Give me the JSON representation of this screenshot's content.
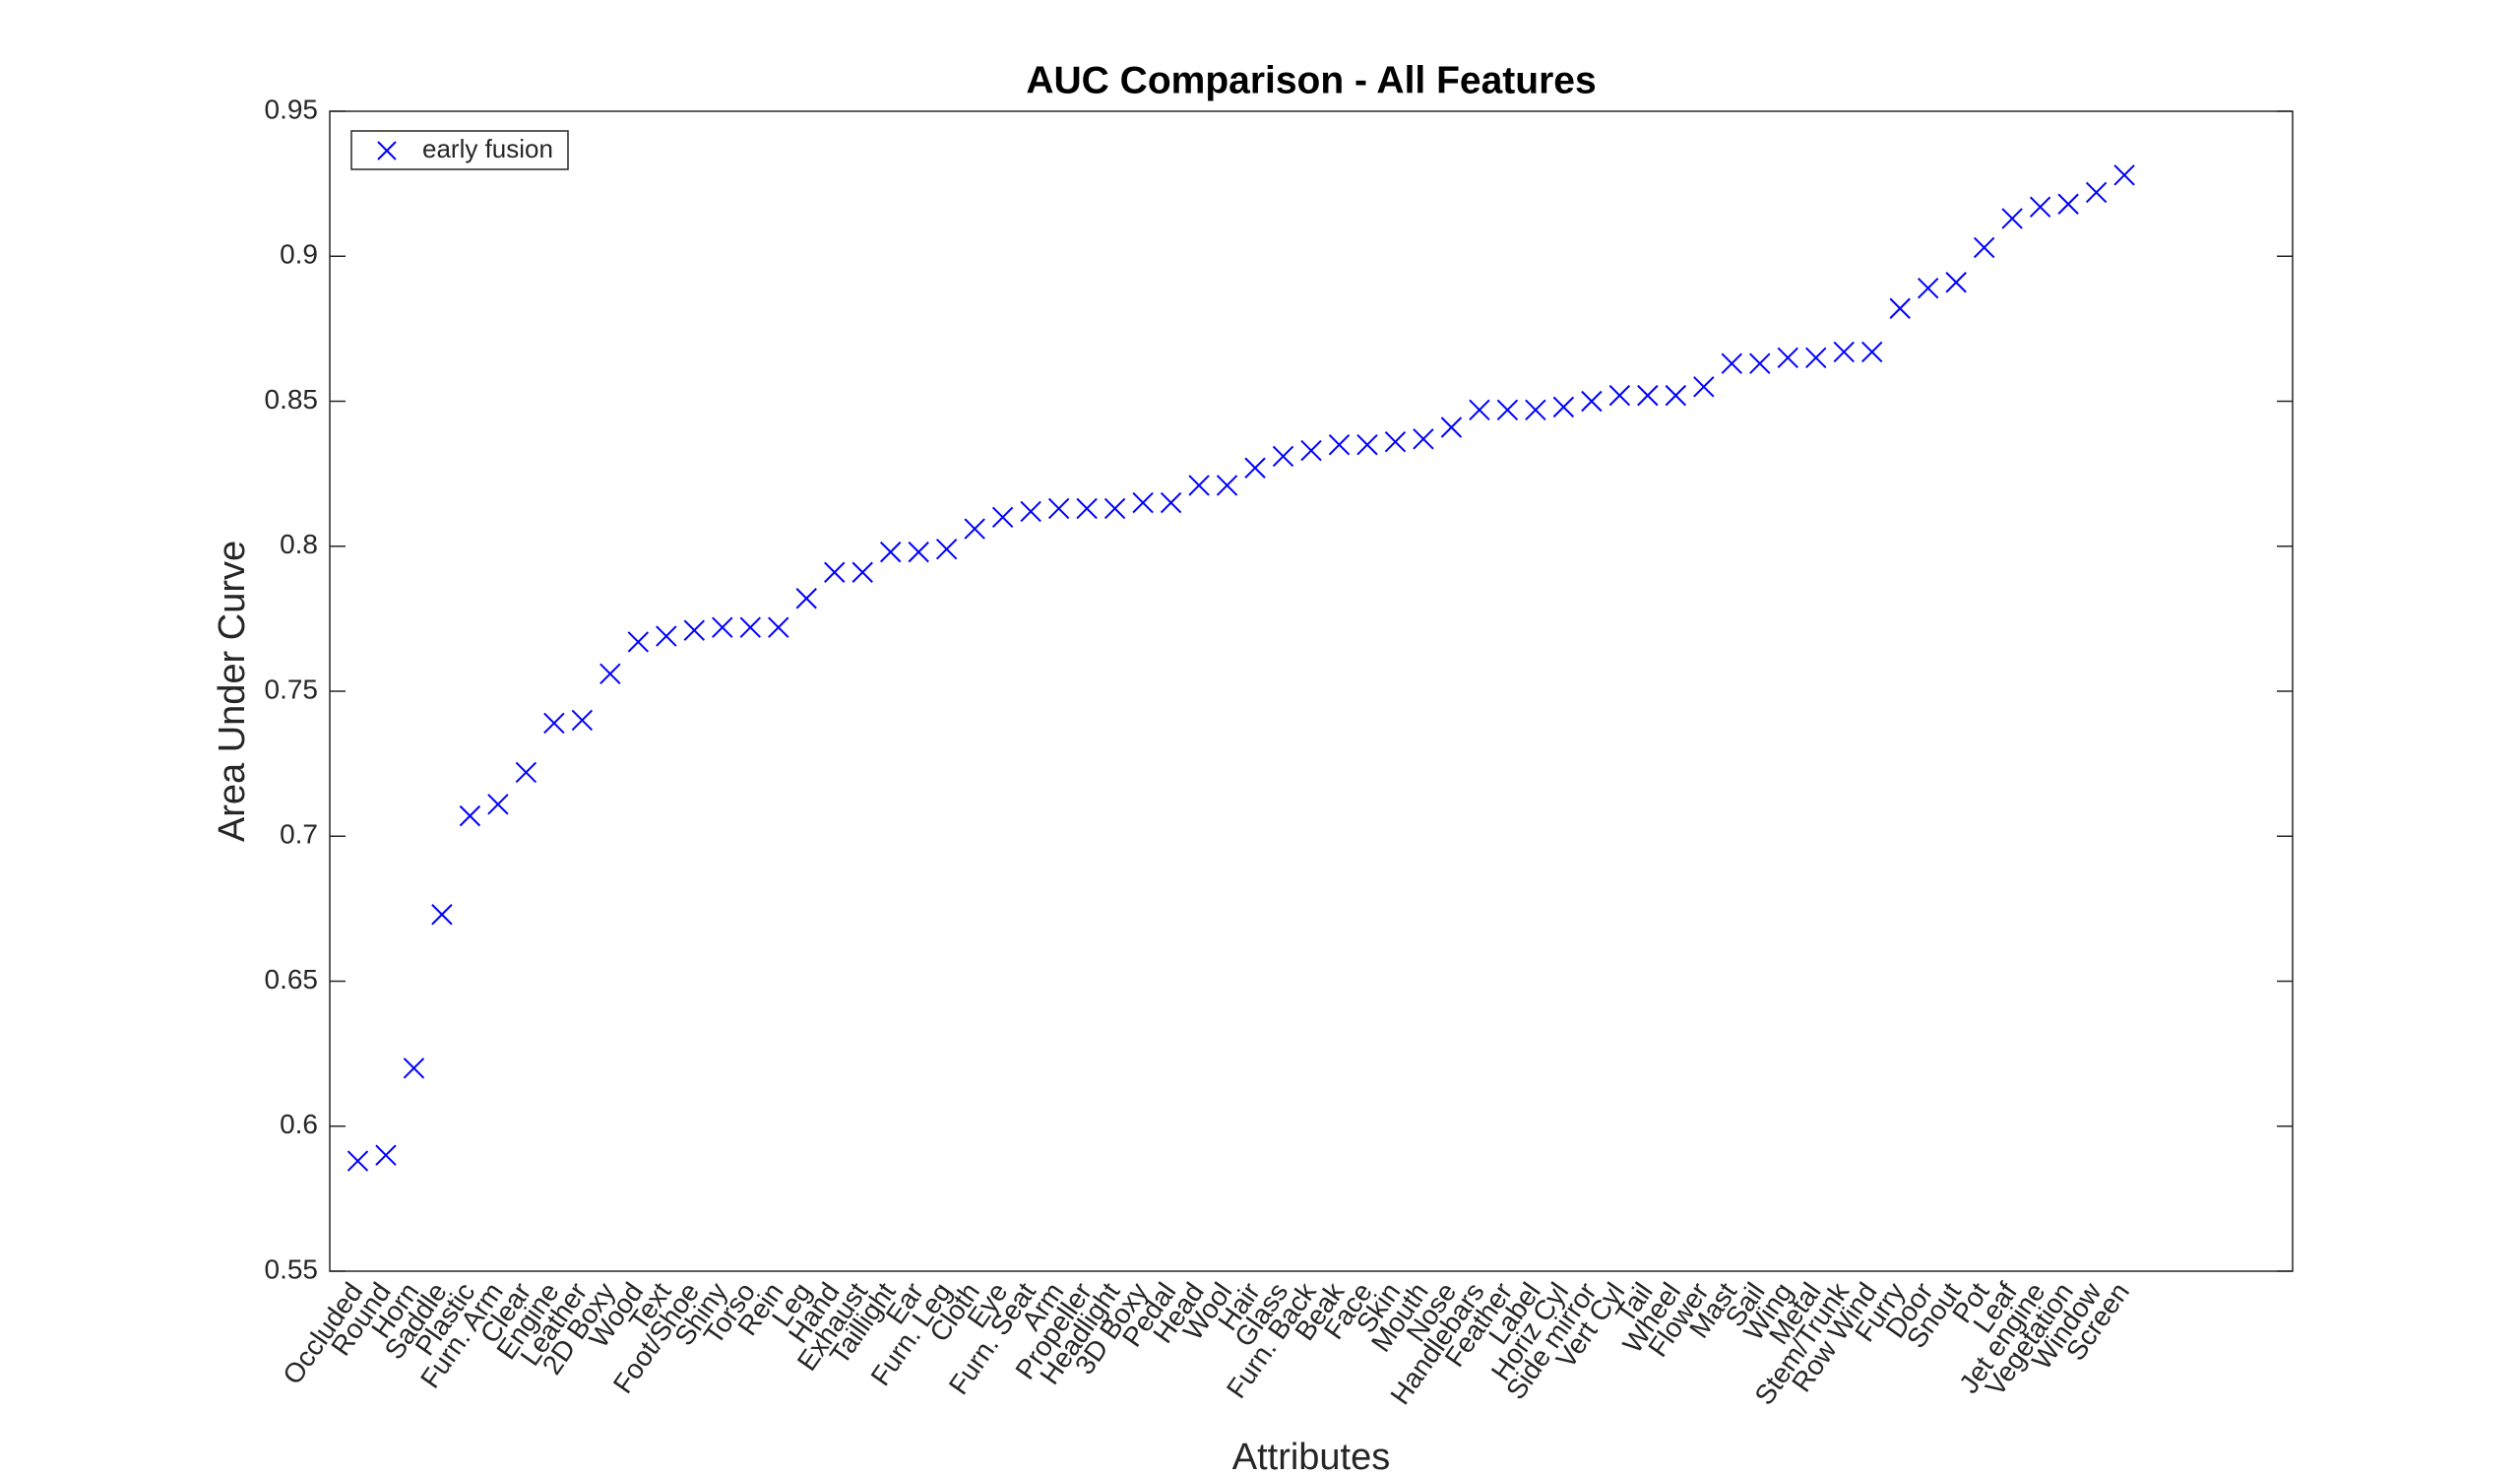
{
  "chart_data": {
    "type": "scatter",
    "title": "AUC Comparison - All Features",
    "xlabel": "Attributes",
    "ylabel": "Area Under Curve",
    "categories": [
      "Occluded",
      "Round",
      "Horn",
      "Saddle",
      "Plastic",
      "Furn. Arm",
      "Clear",
      "Engine",
      "Leather",
      "2D Boxy",
      "Wood",
      "Text",
      "Foot/Shoe",
      "Shiny",
      "Torso",
      "Rein",
      "Leg",
      "Hand",
      "Exhaust",
      "Taillight",
      "Ear",
      "Furn. Leg",
      "Cloth",
      "Eye",
      "Furn. Seat",
      "Arm",
      "Propeller",
      "Headlight",
      "3D Boxy",
      "Pedal",
      "Head",
      "Wool",
      "Hair",
      "Glass",
      "Furn. Back",
      "Beak",
      "Face",
      "Skin",
      "Mouth",
      "Nose",
      "Handlebars",
      "Feather",
      "Label",
      "Horiz Cyl",
      "Side mirror",
      "Vert Cyl",
      "Tail",
      "Wheel",
      "Flower",
      "Mast",
      "Sail",
      "Wing",
      "Metal",
      "Stem/Trunk",
      "Row Wind",
      "Furry",
      "Door",
      "Snout",
      "Pot",
      "Leaf",
      "Jet engine",
      "Vegetation",
      "Window",
      "Screen"
    ],
    "series": [
      {
        "name": "early fusion",
        "color": "#0000ff",
        "values": [
          0.588,
          0.59,
          0.62,
          0.673,
          0.707,
          0.711,
          0.722,
          0.739,
          0.74,
          0.756,
          0.767,
          0.769,
          0.771,
          0.772,
          0.772,
          0.772,
          0.782,
          0.791,
          0.791,
          0.798,
          0.798,
          0.799,
          0.806,
          0.81,
          0.812,
          0.813,
          0.813,
          0.813,
          0.815,
          0.815,
          0.821,
          0.821,
          0.827,
          0.831,
          0.833,
          0.835,
          0.835,
          0.836,
          0.837,
          0.841,
          0.847,
          0.847,
          0.847,
          0.848,
          0.85,
          0.852,
          0.852,
          0.852,
          0.855,
          0.863,
          0.863,
          0.865,
          0.865,
          0.867,
          0.867,
          0.882,
          0.889,
          0.891,
          0.903,
          0.913,
          0.917,
          0.918,
          0.922,
          0.928
        ]
      }
    ],
    "xlim": [
      0,
      70
    ],
    "ylim": [
      0.55,
      0.95
    ],
    "yticks": [
      0.55,
      0.6,
      0.65,
      0.7,
      0.75,
      0.8,
      0.85,
      0.9,
      0.95
    ],
    "grid": false,
    "legend_position": "upper left"
  }
}
